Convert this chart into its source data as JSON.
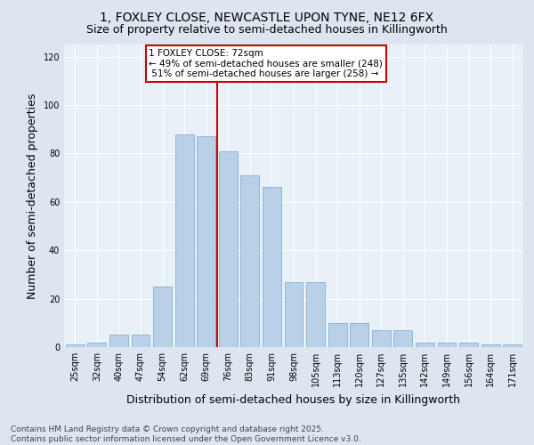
{
  "title_line1": "1, FOXLEY CLOSE, NEWCASTLE UPON TYNE, NE12 6FX",
  "title_line2": "Size of property relative to semi-detached houses in Killingworth",
  "xlabel": "Distribution of semi-detached houses by size in Killingworth",
  "ylabel": "Number of semi-detached properties",
  "categories": [
    "25sqm",
    "32sqm",
    "40sqm",
    "47sqm",
    "54sqm",
    "62sqm",
    "69sqm",
    "76sqm",
    "83sqm",
    "91sqm",
    "98sqm",
    "105sqm",
    "113sqm",
    "120sqm",
    "127sqm",
    "135sqm",
    "142sqm",
    "149sqm",
    "156sqm",
    "164sqm",
    "171sqm"
  ],
  "bar_heights": [
    1,
    2,
    5,
    5,
    25,
    88,
    87,
    81,
    71,
    66,
    27,
    27,
    10,
    10,
    7,
    7,
    2,
    2,
    2,
    1,
    1
  ],
  "bar_color": "#b8d0e8",
  "bar_edge_color": "#8ab0cc",
  "vline_x_index": 6.5,
  "vline_color": "#cc0000",
  "annotation_text": "1 FOXLEY CLOSE: 72sqm\n← 49% of semi-detached houses are smaller (248)\n 51% of semi-detached houses are larger (258) →",
  "annotation_box_color": "#ffffff",
  "annotation_box_edge": "#cc0000",
  "ylim": [
    0,
    125
  ],
  "yticks": [
    0,
    20,
    40,
    60,
    80,
    100,
    120
  ],
  "footer": "Contains HM Land Registry data © Crown copyright and database right 2025.\nContains public sector information licensed under the Open Government Licence v3.0.",
  "bg_color": "#dde6f0",
  "plot_bg_color": "#e8f0f8",
  "grid_color": "#ffffff",
  "title_fontsize": 10,
  "subtitle_fontsize": 9,
  "tick_fontsize": 7,
  "label_fontsize": 9,
  "footer_fontsize": 6.5,
  "ann_fontsize": 7.5
}
